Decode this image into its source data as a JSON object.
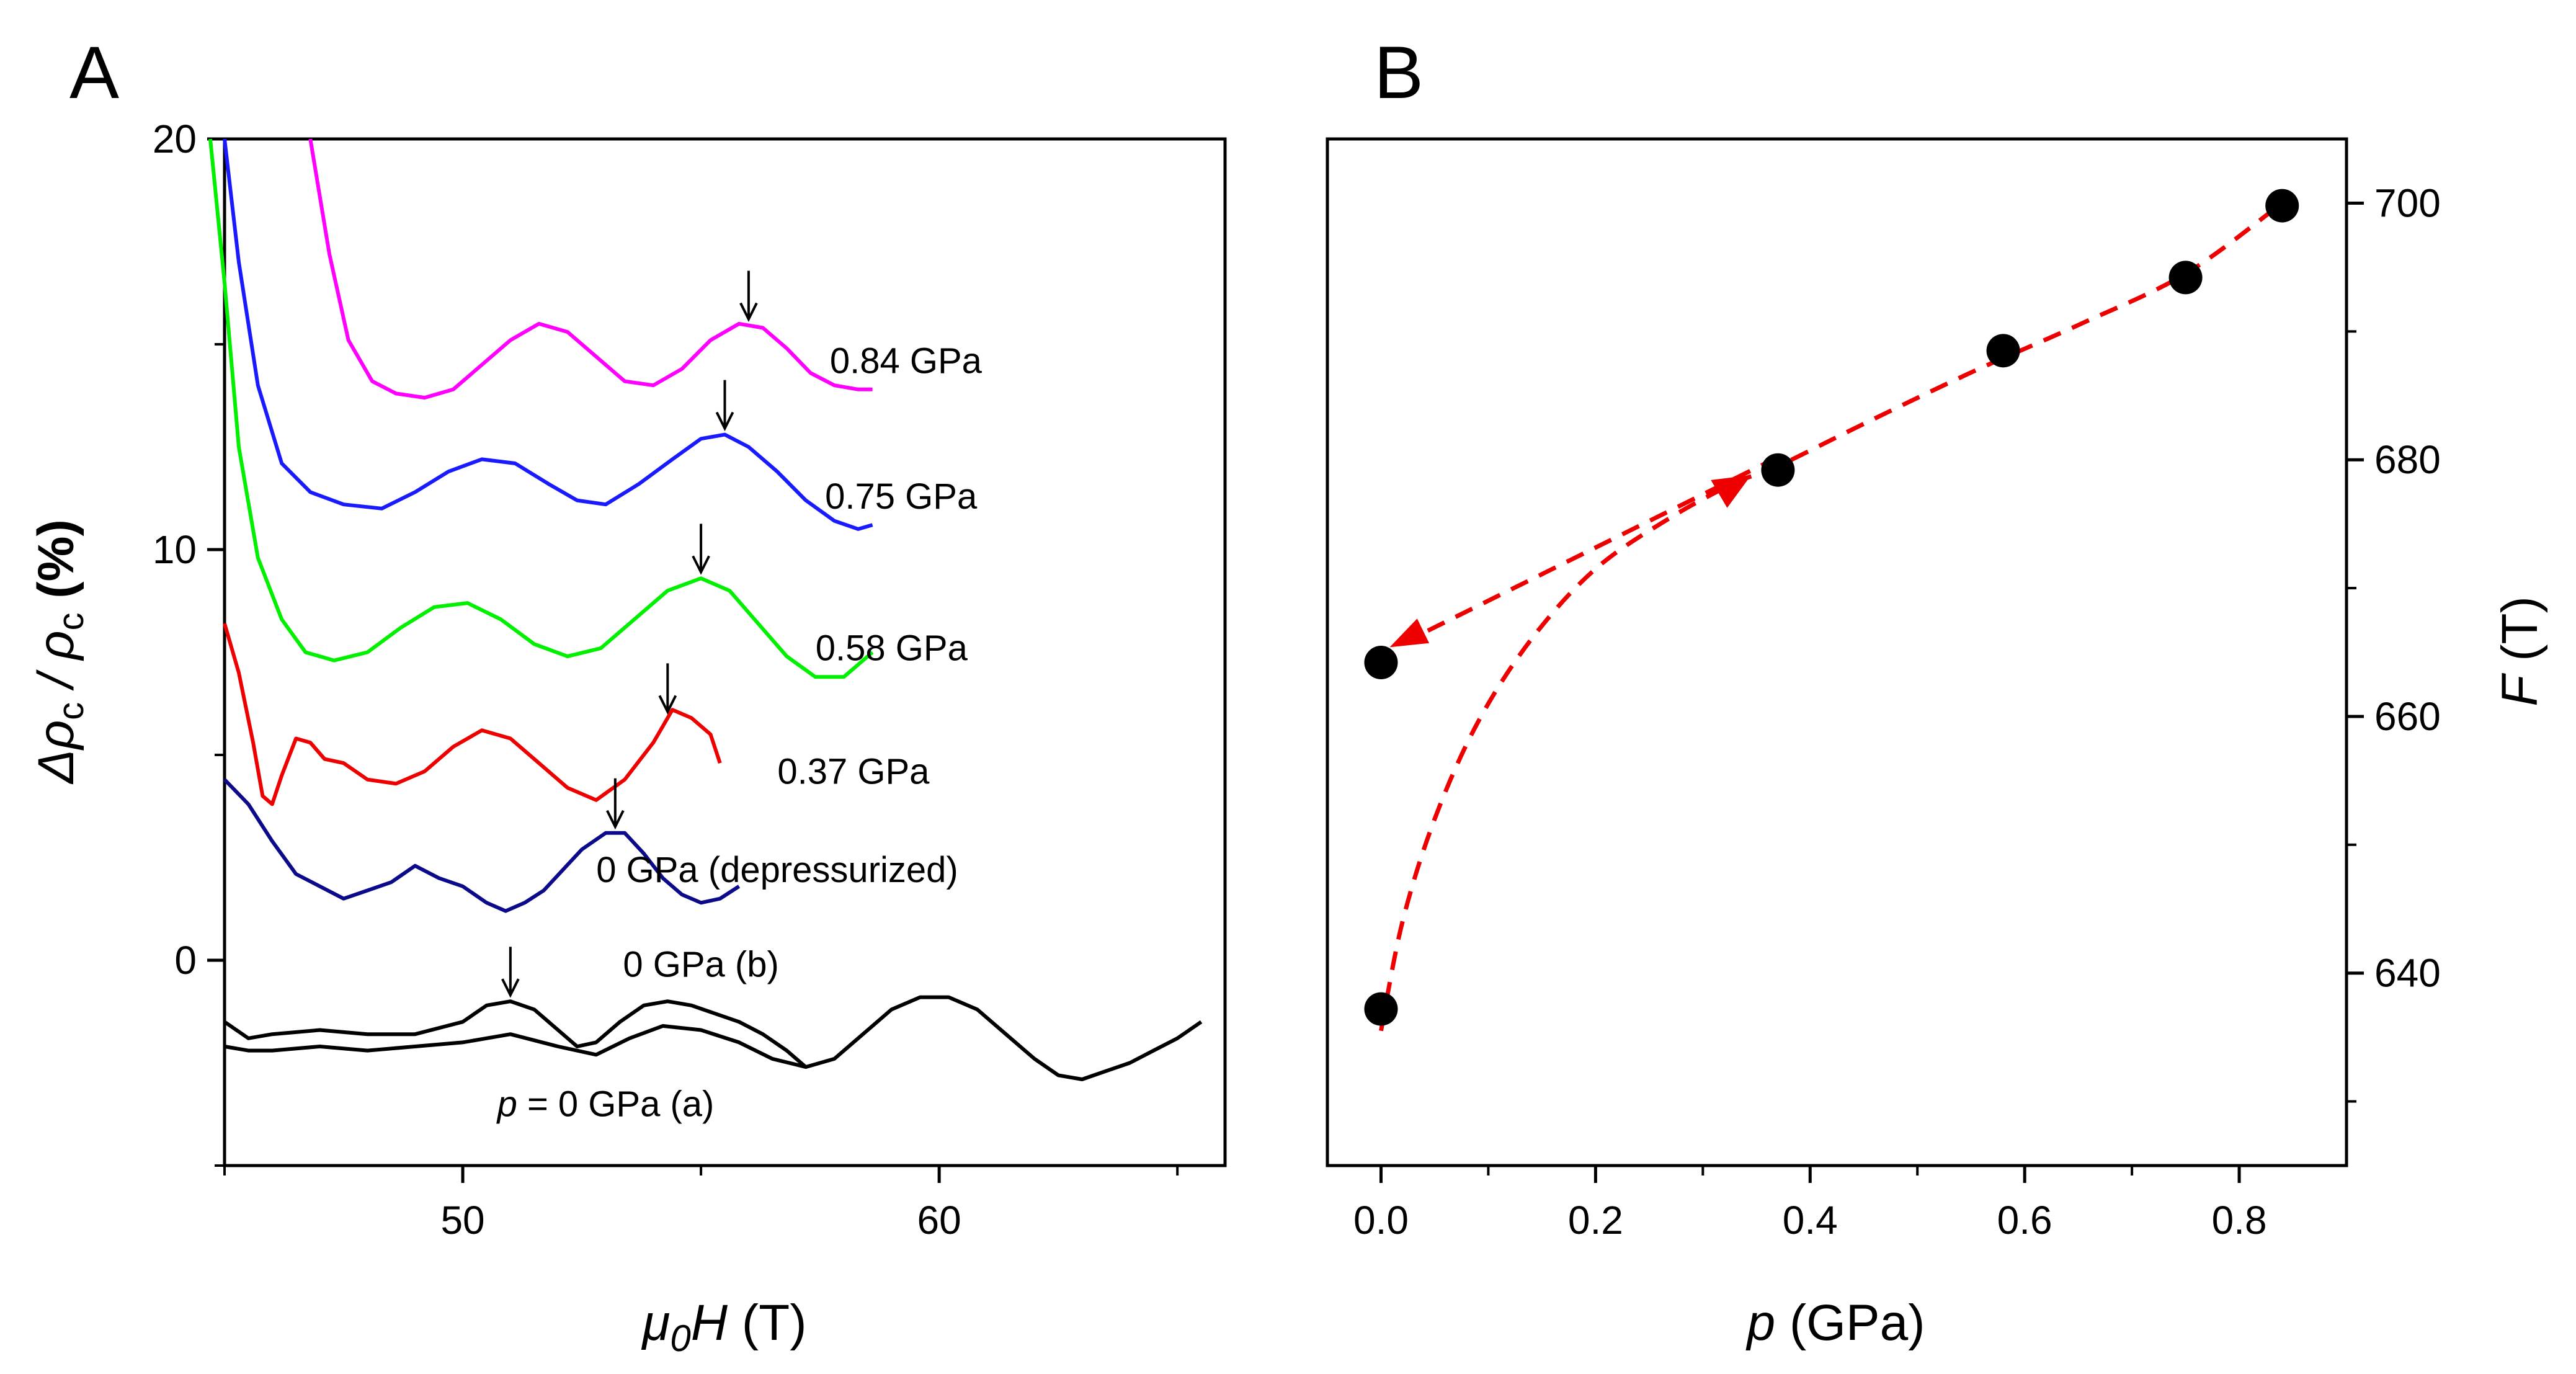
{
  "panels": {
    "a_letter": "A",
    "b_letter": "B"
  },
  "chart_data": [
    {
      "panel": "A",
      "type": "line",
      "xlabel_sym": "μ",
      "xlabel_sub": "0",
      "xlabel_var": "H",
      "xlabel_unit": " (T)",
      "ylabel": "Δρc / ρc (%)",
      "ylabel_parts": {
        "delta": "Δρ",
        "c1": "c",
        "slash": " / ρ",
        "c2": "c",
        "unit": " (%)"
      },
      "xlim": [
        45,
        66
      ],
      "ylim": [
        -5,
        20
      ],
      "xticks": [
        50,
        60
      ],
      "yticks": [
        0,
        10,
        20
      ],
      "series": [
        {
          "name": "0.84 GPa",
          "color": "#ff00ff",
          "arrow_x": 56.0,
          "label_x": 59.3,
          "label_y": 14.3,
          "points": [
            [
              46.8,
              20
            ],
            [
              47.2,
              17.2
            ],
            [
              47.6,
              15.1
            ],
            [
              48.1,
              14.1
            ],
            [
              48.6,
              13.8
            ],
            [
              49.2,
              13.7
            ],
            [
              49.8,
              13.9
            ],
            [
              50.4,
              14.5
            ],
            [
              51.0,
              15.1
            ],
            [
              51.6,
              15.5
            ],
            [
              52.2,
              15.3
            ],
            [
              52.8,
              14.7
            ],
            [
              53.4,
              14.1
            ],
            [
              54.0,
              14.0
            ],
            [
              54.6,
              14.4
            ],
            [
              55.2,
              15.1
            ],
            [
              55.8,
              15.5
            ],
            [
              56.3,
              15.4
            ],
            [
              56.8,
              14.9
            ],
            [
              57.3,
              14.3
            ],
            [
              57.8,
              14.0
            ],
            [
              58.3,
              13.9
            ],
            [
              58.6,
              13.9
            ]
          ]
        },
        {
          "name": "0.75 GPa",
          "color": "#1a1aff",
          "arrow_x": 55.5,
          "label_x": 59.2,
          "label_y": 11.0,
          "points": [
            [
              45.0,
              20
            ],
            [
              45.3,
              17.0
            ],
            [
              45.7,
              14.0
            ],
            [
              46.2,
              12.1
            ],
            [
              46.8,
              11.4
            ],
            [
              47.5,
              11.1
            ],
            [
              48.3,
              11.0
            ],
            [
              49.0,
              11.4
            ],
            [
              49.7,
              11.9
            ],
            [
              50.4,
              12.2
            ],
            [
              51.1,
              12.1
            ],
            [
              51.8,
              11.6
            ],
            [
              52.4,
              11.2
            ],
            [
              53.0,
              11.1
            ],
            [
              53.7,
              11.6
            ],
            [
              54.4,
              12.2
            ],
            [
              55.0,
              12.7
            ],
            [
              55.5,
              12.8
            ],
            [
              56.0,
              12.5
            ],
            [
              56.6,
              11.9
            ],
            [
              57.2,
              11.2
            ],
            [
              57.8,
              10.7
            ],
            [
              58.3,
              10.5
            ],
            [
              58.6,
              10.6
            ]
          ]
        },
        {
          "name": "0.58 GPa",
          "color": "#00f000",
          "arrow_x": 55.0,
          "label_x": 59.0,
          "label_y": 7.3,
          "points": [
            [
              44.7,
              20
            ],
            [
              45.0,
              16.5
            ],
            [
              45.3,
              12.5
            ],
            [
              45.7,
              9.8
            ],
            [
              46.2,
              8.3
            ],
            [
              46.7,
              7.5
            ],
            [
              47.3,
              7.3
            ],
            [
              48.0,
              7.5
            ],
            [
              48.7,
              8.1
            ],
            [
              49.4,
              8.6
            ],
            [
              50.1,
              8.7
            ],
            [
              50.8,
              8.3
            ],
            [
              51.5,
              7.7
            ],
            [
              52.2,
              7.4
            ],
            [
              52.9,
              7.6
            ],
            [
              53.6,
              8.3
            ],
            [
              54.3,
              9.0
            ],
            [
              55.0,
              9.3
            ],
            [
              55.6,
              9.0
            ],
            [
              56.2,
              8.2
            ],
            [
              56.8,
              7.4
            ],
            [
              57.4,
              6.9
            ],
            [
              58.0,
              6.9
            ],
            [
              58.6,
              7.5
            ]
          ]
        },
        {
          "name": "0.37 GPa",
          "color": "#ee0000",
          "arrow_x": 54.3,
          "label_x": 58.2,
          "label_y": 4.3,
          "points": [
            [
              45.0,
              8.2
            ],
            [
              45.3,
              7.0
            ],
            [
              45.6,
              5.3
            ],
            [
              45.8,
              4.0
            ],
            [
              46.0,
              3.8
            ],
            [
              46.2,
              4.5
            ],
            [
              46.5,
              5.4
            ],
            [
              46.8,
              5.3
            ],
            [
              47.1,
              4.9
            ],
            [
              47.5,
              4.8
            ],
            [
              48.0,
              4.4
            ],
            [
              48.6,
              4.3
            ],
            [
              49.2,
              4.6
            ],
            [
              49.8,
              5.2
            ],
            [
              50.4,
              5.6
            ],
            [
              51.0,
              5.4
            ],
            [
              51.6,
              4.8
            ],
            [
              52.2,
              4.2
            ],
            [
              52.8,
              3.9
            ],
            [
              53.4,
              4.4
            ],
            [
              54.0,
              5.3
            ],
            [
              54.4,
              6.1
            ],
            [
              54.8,
              5.9
            ],
            [
              55.2,
              5.5
            ],
            [
              55.4,
              4.8
            ]
          ]
        },
        {
          "name": "0 GPa (depressurized)",
          "color": "#0a0a8a",
          "arrow_x": 53.2,
          "label_x": 56.6,
          "label_y": 1.9,
          "points": [
            [
              45.0,
              4.4
            ],
            [
              45.5,
              3.8
            ],
            [
              46.0,
              2.9
            ],
            [
              46.5,
              2.1
            ],
            [
              47.0,
              1.8
            ],
            [
              47.5,
              1.5
            ],
            [
              48.0,
              1.7
            ],
            [
              48.5,
              1.9
            ],
            [
              49.0,
              2.3
            ],
            [
              49.5,
              2.0
            ],
            [
              50.0,
              1.8
            ],
            [
              50.5,
              1.4
            ],
            [
              50.9,
              1.2
            ],
            [
              51.3,
              1.4
            ],
            [
              51.7,
              1.7
            ],
            [
              52.1,
              2.2
            ],
            [
              52.5,
              2.7
            ],
            [
              53.0,
              3.1
            ],
            [
              53.4,
              3.1
            ],
            [
              53.8,
              2.6
            ],
            [
              54.2,
              2.0
            ],
            [
              54.6,
              1.6
            ],
            [
              55.0,
              1.4
            ],
            [
              55.4,
              1.5
            ],
            [
              55.8,
              1.8
            ]
          ]
        },
        {
          "name": "0 GPa (b)",
          "color": "#000000",
          "arrow_x": 51.0,
          "label_x": 55.0,
          "label_y": -0.4,
          "points": [
            [
              45.0,
              -1.5
            ],
            [
              45.5,
              -1.9
            ],
            [
              46.0,
              -1.8
            ],
            [
              47.0,
              -1.7
            ],
            [
              48.0,
              -1.8
            ],
            [
              49.0,
              -1.8
            ],
            [
              50.0,
              -1.5
            ],
            [
              50.5,
              -1.1
            ],
            [
              51.0,
              -1.0
            ],
            [
              51.5,
              -1.2
            ],
            [
              52.0,
              -1.7
            ],
            [
              52.4,
              -2.1
            ],
            [
              52.8,
              -2.0
            ],
            [
              53.3,
              -1.5
            ],
            [
              53.8,
              -1.1
            ],
            [
              54.3,
              -1.0
            ],
            [
              54.8,
              -1.1
            ],
            [
              55.3,
              -1.3
            ],
            [
              55.8,
              -1.5
            ],
            [
              56.3,
              -1.8
            ],
            [
              56.8,
              -2.2
            ],
            [
              57.2,
              -2.6
            ]
          ]
        },
        {
          "name": "p = 0 GPa (a)",
          "color": "#000000",
          "arrow_x": null,
          "label_x": 53.0,
          "label_y": -3.8,
          "points": [
            [
              45.0,
              -2.1
            ],
            [
              45.5,
              -2.2
            ],
            [
              46.0,
              -2.2
            ],
            [
              47.0,
              -2.1
            ],
            [
              48.0,
              -2.2
            ],
            [
              49.0,
              -2.1
            ],
            [
              50.0,
              -2.0
            ],
            [
              51.0,
              -1.8
            ],
            [
              52.0,
              -2.1
            ],
            [
              52.8,
              -2.3
            ],
            [
              53.5,
              -1.9
            ],
            [
              54.2,
              -1.6
            ],
            [
              55.0,
              -1.7
            ],
            [
              55.8,
              -2.0
            ],
            [
              56.5,
              -2.4
            ],
            [
              57.2,
              -2.6
            ],
            [
              57.8,
              -2.4
            ],
            [
              58.4,
              -1.8
            ],
            [
              59.0,
              -1.2
            ],
            [
              59.6,
              -0.9
            ],
            [
              60.2,
              -0.9
            ],
            [
              60.8,
              -1.2
            ],
            [
              61.4,
              -1.8
            ],
            [
              62.0,
              -2.4
            ],
            [
              62.5,
              -2.8
            ],
            [
              63.0,
              -2.9
            ],
            [
              63.5,
              -2.7
            ],
            [
              64.0,
              -2.5
            ],
            [
              64.5,
              -2.2
            ],
            [
              65.0,
              -1.9
            ],
            [
              65.5,
              -1.5
            ]
          ]
        }
      ]
    },
    {
      "panel": "B",
      "type": "scatter",
      "xlabel_var": "p",
      "xlabel_unit": " (GPa)",
      "ylabel_var": "F",
      "ylabel_unit": " (T)",
      "xlim": [
        -0.05,
        0.9
      ],
      "ylim": [
        625,
        705
      ],
      "xticks": [
        0.0,
        0.2,
        0.4,
        0.6,
        0.8
      ],
      "xtick_labels": [
        "0.0",
        "0.2",
        "0.4",
        "0.6",
        "0.8"
      ],
      "yticks": [
        640,
        660,
        680,
        700
      ],
      "y_axis_side": "right",
      "points": [
        {
          "x": 0.0,
          "y": 637.2
        },
        {
          "x": 0.0,
          "y": 664.2
        },
        {
          "x": 0.37,
          "y": 679.2
        },
        {
          "x": 0.58,
          "y": 688.5
        },
        {
          "x": 0.75,
          "y": 694.2
        },
        {
          "x": 0.84,
          "y": 699.8
        }
      ],
      "guide_color": "#ee0000",
      "guide_curve": [
        [
          0.0,
          635.5
        ],
        [
          0.02,
          644
        ],
        [
          0.05,
          652
        ],
        [
          0.09,
          659.5
        ],
        [
          0.14,
          666
        ],
        [
          0.2,
          671.5
        ],
        [
          0.27,
          675.5
        ],
        [
          0.33,
          678.2
        ],
        [
          0.37,
          679.5
        ],
        [
          0.45,
          682.8
        ],
        [
          0.55,
          686.8
        ],
        [
          0.65,
          690.5
        ],
        [
          0.75,
          694.5
        ],
        [
          0.84,
          700.0
        ]
      ],
      "guide_return": [
        [
          0.37,
          680.2
        ],
        [
          0.0,
          665.2
        ]
      ]
    }
  ]
}
